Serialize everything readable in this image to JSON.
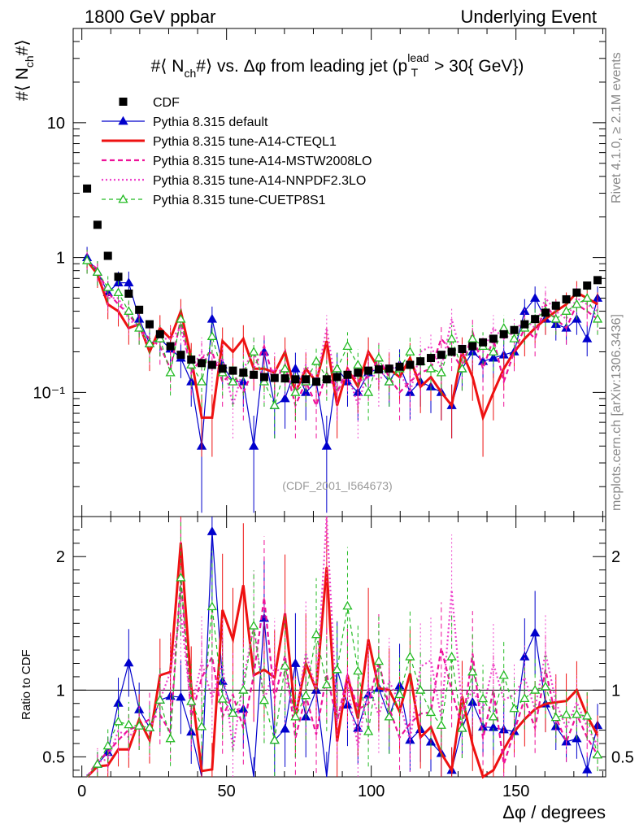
{
  "header": {
    "left": "1800 GeV ppbar",
    "right": "Underlying Event"
  },
  "side": {
    "rivet": "Rivet 4.1.0, ≥ 2.1M events",
    "mcplots": "mcplots.cern.ch [arXiv:1306.3436]"
  },
  "chart_data": {
    "type": "scatter",
    "title": "#⟨ N_ch #⟩ vs. Δφ from leading jet (p_T^lead > 30{ GeV})",
    "title_parts": {
      "prefix": "#⟨ N",
      "sub": "ch",
      "mid": "#⟩ vs. Δφ from leading jet  (p",
      "sup": "lead",
      "sub2": "T",
      "suffix": " > 30{ GeV})"
    },
    "ylabel_main": {
      "prefix": "#⟨ N",
      "sub": "ch",
      "suffix": "#⟩"
    },
    "ylabel_ratio": "Ratio to CDF",
    "xlabel": "Δφ / degrees",
    "watermark": "(CDF_2001_I564673)",
    "xlim": [
      -3,
      181
    ],
    "ylim_main": [
      0.012,
      50
    ],
    "ylim_ratio": [
      0.35,
      2.3
    ],
    "x_ticks": [
      "0",
      "50",
      "100",
      "150"
    ],
    "y_ticks_main": [
      "10",
      "1",
      "10⁻¹"
    ],
    "y_ticks_ratio": [
      "2",
      "1",
      "0.5"
    ],
    "x": [
      1.8,
      5.4,
      9.0,
      12.6,
      16.2,
      19.8,
      23.4,
      27.0,
      30.6,
      34.2,
      37.8,
      41.4,
      45.0,
      48.6,
      52.2,
      55.8,
      59.4,
      63.0,
      66.6,
      70.2,
      73.8,
      77.4,
      81.0,
      84.6,
      88.2,
      91.8,
      95.4,
      99.0,
      102.6,
      106.2,
      109.8,
      113.4,
      117.0,
      120.6,
      124.2,
      127.8,
      131.4,
      135.0,
      138.6,
      142.2,
      145.8,
      149.4,
      153.0,
      156.6,
      160.2,
      163.8,
      167.4,
      171.0,
      174.6,
      178.2
    ],
    "series": [
      {
        "name": "CDF",
        "style": "marker-square",
        "color": "#000000",
        "values": [
          3.25,
          1.75,
          1.03,
          0.72,
          0.54,
          0.41,
          0.32,
          0.27,
          0.22,
          0.19,
          0.175,
          0.165,
          0.16,
          0.15,
          0.145,
          0.14,
          0.135,
          0.13,
          0.128,
          0.127,
          0.125,
          0.125,
          0.12,
          0.125,
          0.13,
          0.135,
          0.14,
          0.145,
          0.148,
          0.15,
          0.155,
          0.16,
          0.17,
          0.18,
          0.19,
          0.2,
          0.21,
          0.22,
          0.235,
          0.25,
          0.27,
          0.29,
          0.32,
          0.35,
          0.39,
          0.44,
          0.49,
          0.55,
          0.62,
          0.68
        ]
      },
      {
        "name": "Pythia 8.315 default",
        "style": "line-triangle",
        "color": "#0000cc",
        "values": [
          1.0,
          0.78,
          0.55,
          0.65,
          0.65,
          0.35,
          0.23,
          0.25,
          0.21,
          0.18,
          0.12,
          0.04,
          0.35,
          0.16,
          0.12,
          0.12,
          0.04,
          0.2,
          0.08,
          0.09,
          0.15,
          0.1,
          0.12,
          0.04,
          0.15,
          0.12,
          0.1,
          0.14,
          0.15,
          0.12,
          0.16,
          0.1,
          0.12,
          0.11,
          0.1,
          0.08,
          0.15,
          0.2,
          0.17,
          0.18,
          0.19,
          0.2,
          0.4,
          0.5,
          0.35,
          0.32,
          0.3,
          0.35,
          0.25,
          0.5
        ]
      },
      {
        "name": "Pythia 8.315 tune-A14-CTEQL1",
        "style": "solid-thick",
        "color": "#ee1111",
        "values": [
          0.95,
          0.75,
          0.45,
          0.4,
          0.3,
          0.32,
          0.2,
          0.3,
          0.25,
          0.4,
          0.18,
          0.065,
          0.065,
          0.24,
          0.2,
          0.25,
          0.15,
          0.15,
          0.14,
          0.2,
          0.1,
          0.15,
          0.12,
          0.24,
          0.08,
          0.15,
          0.11,
          0.2,
          0.15,
          0.15,
          0.13,
          0.18,
          0.11,
          0.13,
          0.1,
          0.08,
          0.2,
          0.13,
          0.065,
          0.1,
          0.15,
          0.2,
          0.25,
          0.3,
          0.35,
          0.4,
          0.45,
          0.55,
          0.5,
          0.45
        ]
      },
      {
        "name": "Pythia 8.315 tune-A14-MSTW2008LO",
        "style": "dashed",
        "color": "#ee1199",
        "values": [
          0.95,
          0.82,
          0.55,
          0.45,
          0.38,
          0.3,
          0.25,
          0.22,
          0.15,
          0.35,
          0.14,
          0.18,
          0.2,
          0.12,
          0.14,
          0.1,
          0.15,
          0.22,
          0.12,
          0.16,
          0.08,
          0.12,
          0.08,
          0.14,
          0.1,
          0.15,
          0.12,
          0.13,
          0.18,
          0.13,
          0.1,
          0.12,
          0.14,
          0.15,
          0.25,
          0.2,
          0.15,
          0.28,
          0.15,
          0.25,
          0.12,
          0.2,
          0.3,
          0.25,
          0.45,
          0.35,
          0.3,
          0.45,
          0.4,
          0.35
        ]
      },
      {
        "name": "Pythia 8.315 tune-A14-NNPDF2.3LO",
        "style": "dotted",
        "color": "#ee44cc",
        "values": [
          0.95,
          0.8,
          0.5,
          0.5,
          0.35,
          0.3,
          0.22,
          0.25,
          0.25,
          0.3,
          0.15,
          0.2,
          0.15,
          0.18,
          0.08,
          0.15,
          0.2,
          0.12,
          0.15,
          0.14,
          0.1,
          0.16,
          0.12,
          0.3,
          0.1,
          0.14,
          0.08,
          0.15,
          0.12,
          0.16,
          0.14,
          0.1,
          0.2,
          0.22,
          0.15,
          0.35,
          0.18,
          0.22,
          0.2,
          0.3,
          0.25,
          0.28,
          0.35,
          0.3,
          0.5,
          0.4,
          0.35,
          0.5,
          0.45,
          0.4
        ]
      },
      {
        "name": "Pythia 8.315 tune-CUETP8S1",
        "style": "dashed-open-triangle",
        "color": "#22bb22",
        "values": [
          0.95,
          0.78,
          0.6,
          0.55,
          0.4,
          0.3,
          0.23,
          0.25,
          0.14,
          0.35,
          0.16,
          0.12,
          0.26,
          0.14,
          0.12,
          0.14,
          0.2,
          0.12,
          0.08,
          0.15,
          0.1,
          0.12,
          0.17,
          0.13,
          0.15,
          0.22,
          0.16,
          0.1,
          0.18,
          0.12,
          0.15,
          0.2,
          0.17,
          0.15,
          0.14,
          0.25,
          0.15,
          0.25,
          0.22,
          0.2,
          0.3,
          0.25,
          0.3,
          0.35,
          0.4,
          0.35,
          0.4,
          0.45,
          0.5,
          0.35
        ]
      }
    ]
  }
}
